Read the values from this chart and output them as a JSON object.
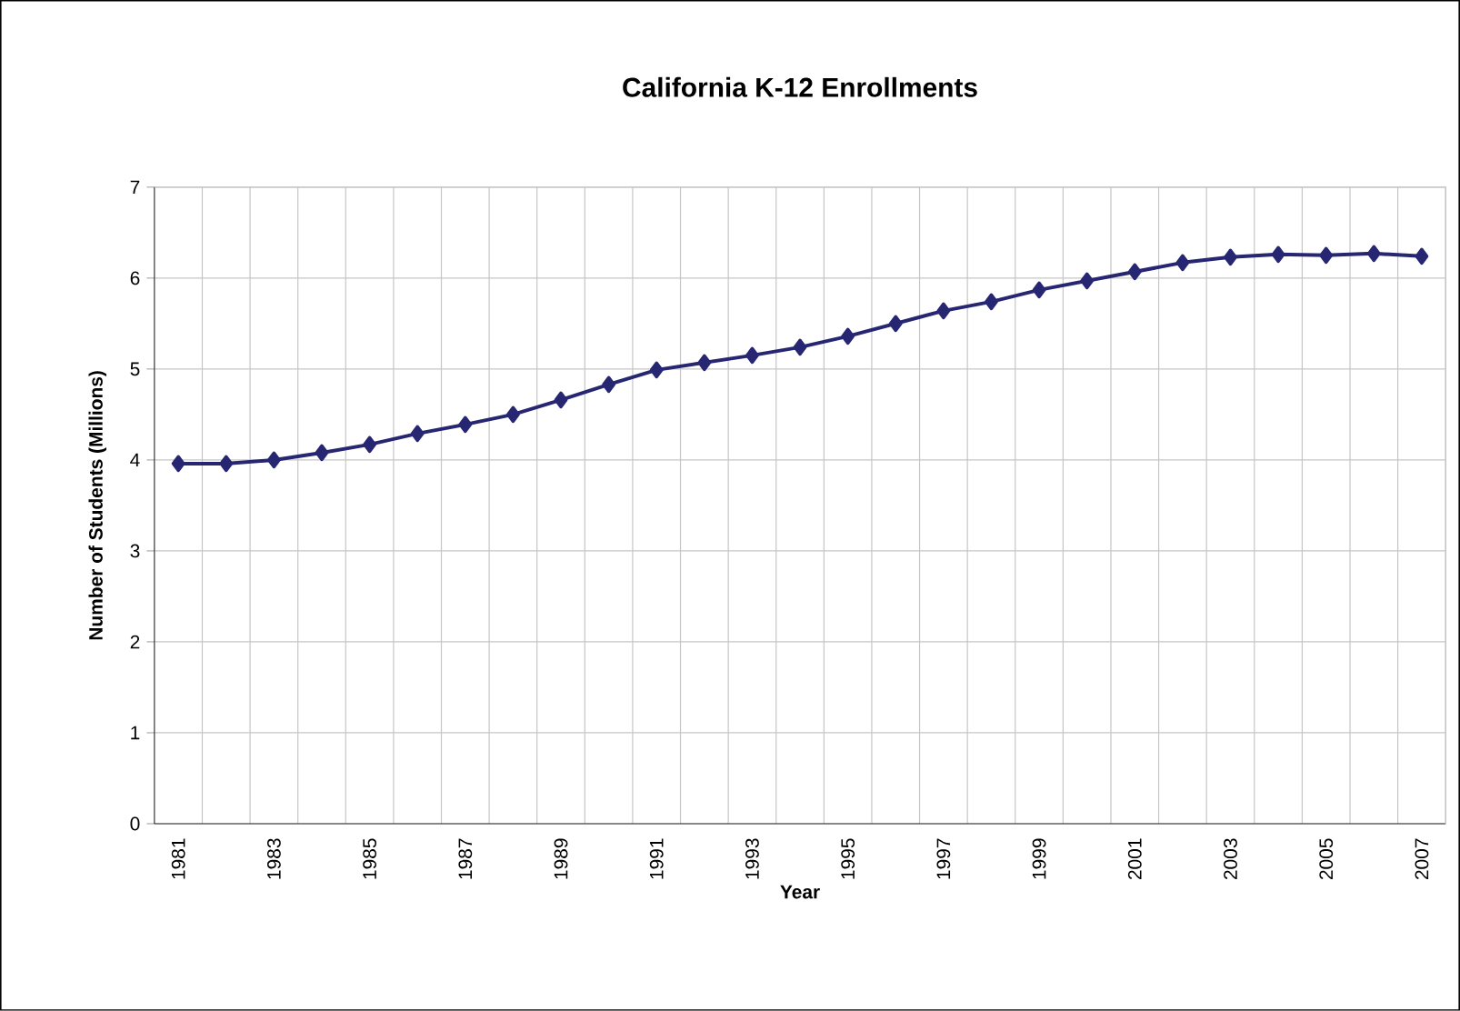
{
  "chart_data": {
    "type": "line",
    "title": "California K-12 Enrollments",
    "xlabel": "Year",
    "ylabel": "Number of Students (Millions)",
    "categories": [
      "1981",
      null,
      "1983",
      null,
      "1985",
      null,
      "1987",
      null,
      "1989",
      null,
      "1991",
      null,
      "1993",
      null,
      "1995",
      null,
      "1997",
      null,
      "1999",
      null,
      "2001",
      null,
      "2003",
      null,
      "2005",
      null,
      "2007"
    ],
    "series": [
      {
        "color": "#262673",
        "values": [
          3.96,
          3.96,
          4.0,
          4.08,
          4.17,
          4.29,
          4.39,
          4.5,
          4.66,
          4.83,
          4.99,
          5.07,
          5.15,
          5.24,
          5.36,
          5.5,
          5.64,
          5.74,
          5.87,
          5.97,
          6.07,
          6.17,
          6.23,
          6.26,
          6.25,
          6.27,
          6.24
        ]
      }
    ],
    "ylim": [
      0,
      7
    ],
    "yticks": [
      0,
      1,
      2,
      3,
      4,
      5,
      6,
      7
    ],
    "grid": true,
    "marker": "diamond",
    "line_style": "solid"
  }
}
